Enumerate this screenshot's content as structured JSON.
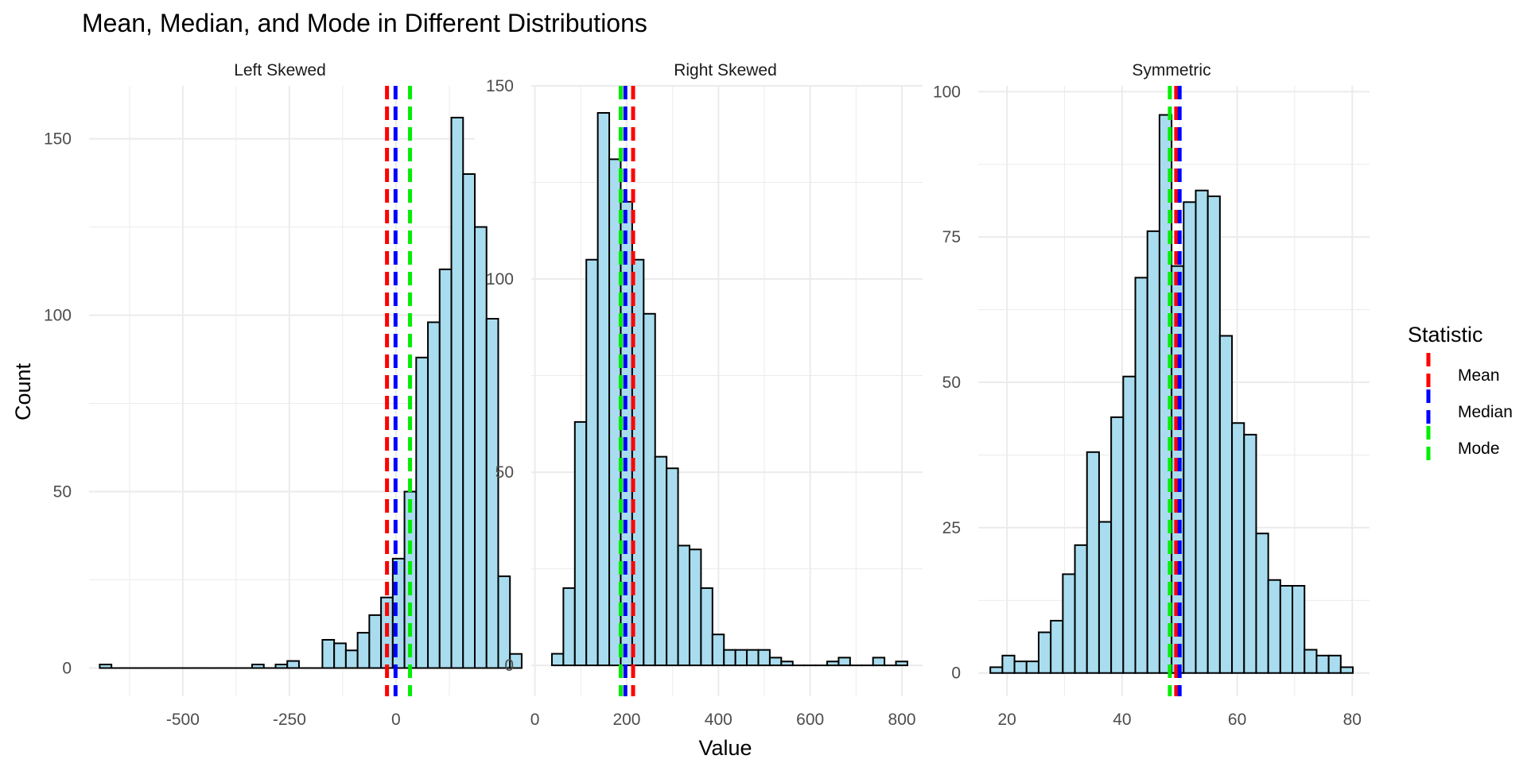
{
  "title": "Mean, Median, and Mode in Different Distributions",
  "xlabel": "Value",
  "ylabel": "Count",
  "legend": {
    "title": "Statistic",
    "placement": "right",
    "items": [
      {
        "label": "Mean",
        "color": "#ff0000"
      },
      {
        "label": "Median",
        "color": "#0000ff"
      },
      {
        "label": "Mode",
        "color": "#00ee00"
      }
    ]
  },
  "colors": {
    "bar_fill": "#a8dcee",
    "bar_stroke": "#000000",
    "grid": "#ebebeb"
  },
  "chart_data": [
    {
      "type": "bar",
      "panel": "Left Skewed",
      "xlim": [
        -720,
        185
      ],
      "ylim": [
        -8,
        165
      ],
      "xticks": [
        -500,
        -250,
        0
      ],
      "xtick_labels": [
        "-500",
        "-250",
        "0"
      ],
      "yticks": [
        0,
        50,
        100,
        150
      ],
      "bin_start": -695,
      "bin_width": 27.5,
      "counts": [
        1,
        0,
        0,
        0,
        0,
        0,
        0,
        0,
        0,
        0,
        0,
        0,
        0,
        1,
        0,
        1,
        2,
        0,
        0,
        8,
        7,
        5,
        10,
        15,
        20,
        31,
        50,
        88,
        98,
        113,
        156,
        140,
        125,
        99,
        26,
        4
      ],
      "mean": -21,
      "median": -1,
      "mode": 33
    },
    {
      "type": "bar",
      "panel": "Right Skewed",
      "xlim": [
        -8,
        845
      ],
      "ylim": [
        -8,
        150
      ],
      "xticks": [
        0,
        200,
        400,
        600,
        800
      ],
      "xtick_labels": [
        "0",
        "200",
        "400",
        "600",
        "800"
      ],
      "yticks": [
        0,
        50,
        100,
        150
      ],
      "bin_start": 37,
      "bin_width": 25,
      "counts": [
        3,
        20,
        63,
        105,
        143,
        131,
        120,
        105,
        91,
        54,
        51,
        31,
        30,
        20,
        8,
        4,
        4,
        4,
        4,
        2,
        1,
        0,
        0,
        0,
        1,
        2,
        0,
        0,
        2,
        0,
        1
      ],
      "mean": 214,
      "median": 197,
      "mode": 187
    },
    {
      "type": "bar",
      "panel": "Symmetric",
      "xlim": [
        15,
        83
      ],
      "ylim": [
        -4,
        101
      ],
      "xticks": [
        20,
        40,
        60,
        80
      ],
      "xtick_labels": [
        "20",
        "40",
        "60",
        "80"
      ],
      "yticks": [
        0,
        25,
        50,
        75,
        100
      ],
      "bin_start": 17.1,
      "bin_width": 2.1,
      "counts": [
        1,
        3,
        2,
        2,
        7,
        9,
        17,
        22,
        38,
        26,
        44,
        51,
        68,
        76,
        96,
        70,
        81,
        83,
        82,
        58,
        43,
        41,
        24,
        16,
        15,
        15,
        4,
        3,
        3,
        1
      ],
      "mean": 49.4,
      "median": 50,
      "mode": 48.3
    }
  ]
}
